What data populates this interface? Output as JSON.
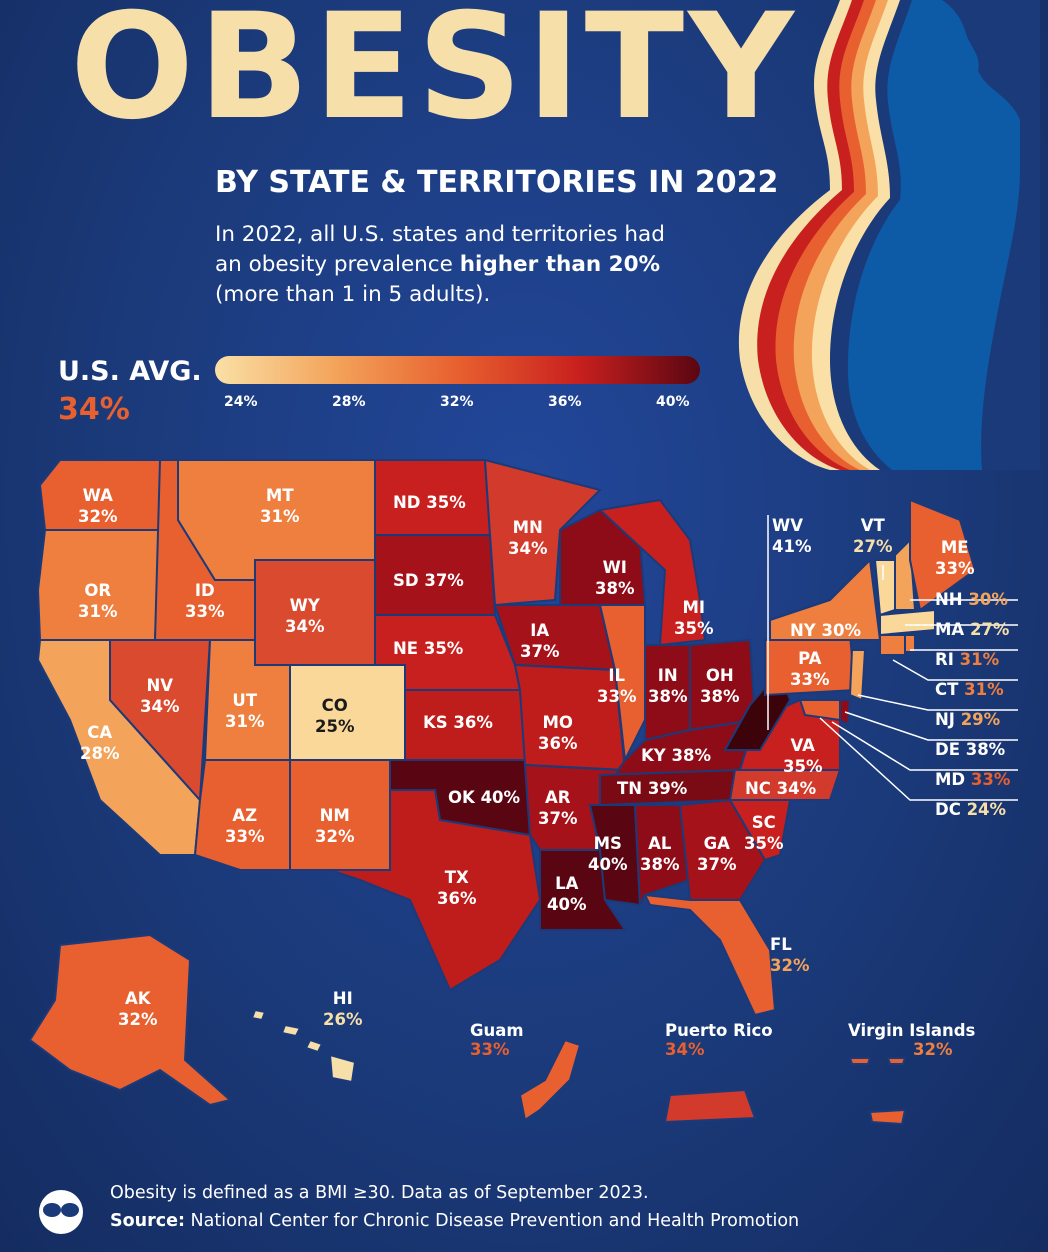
{
  "header": {
    "title": "OBESITY",
    "subtitle": "BY STATE & TERRITORIES IN 2022",
    "description_part1": "In 2022, all U.S. states and territories had an obesity prevalence ",
    "description_bold": "higher than 20%",
    "description_part2": " (more than 1 in 5 adults)."
  },
  "us_average": {
    "label": "U.S. AVG.",
    "value": "34%"
  },
  "legend": {
    "ticks": [
      "24%",
      "28%",
      "32%",
      "36%",
      "40%"
    ],
    "colors": [
      "#fae0a6",
      "#f3a35a",
      "#e8602f",
      "#c8201e",
      "#5a0612"
    ]
  },
  "states": {
    "WA": {
      "abbr": "WA",
      "value": "32%"
    },
    "OR": {
      "abbr": "OR",
      "value": "31%"
    },
    "CA": {
      "abbr": "CA",
      "value": "28%"
    },
    "ID": {
      "abbr": "ID",
      "value": "33%"
    },
    "NV": {
      "abbr": "NV",
      "value": "34%"
    },
    "MT": {
      "abbr": "MT",
      "value": "31%"
    },
    "WY": {
      "abbr": "WY",
      "value": "34%"
    },
    "UT": {
      "abbr": "UT",
      "value": "31%"
    },
    "CO": {
      "abbr": "CO",
      "value": "25%"
    },
    "AZ": {
      "abbr": "AZ",
      "value": "33%"
    },
    "NM": {
      "abbr": "NM",
      "value": "32%"
    },
    "ND": {
      "abbr": "ND",
      "value": "35%"
    },
    "SD": {
      "abbr": "SD",
      "value": "37%"
    },
    "NE": {
      "abbr": "NE",
      "value": "35%"
    },
    "KS": {
      "abbr": "KS",
      "value": "36%"
    },
    "OK": {
      "abbr": "OK",
      "value": "40%"
    },
    "TX": {
      "abbr": "TX",
      "value": "36%"
    },
    "MN": {
      "abbr": "MN",
      "value": "34%"
    },
    "IA": {
      "abbr": "IA",
      "value": "37%"
    },
    "MO": {
      "abbr": "MO",
      "value": "36%"
    },
    "AR": {
      "abbr": "AR",
      "value": "37%"
    },
    "LA": {
      "abbr": "LA",
      "value": "40%"
    },
    "WI": {
      "abbr": "WI",
      "value": "38%"
    },
    "IL": {
      "abbr": "IL",
      "value": "33%"
    },
    "MS": {
      "abbr": "MS",
      "value": "40%"
    },
    "MI": {
      "abbr": "MI",
      "value": "35%"
    },
    "IN": {
      "abbr": "IN",
      "value": "38%"
    },
    "KY": {
      "abbr": "KY",
      "value": "38%"
    },
    "TN": {
      "abbr": "TN",
      "value": "39%"
    },
    "AL": {
      "abbr": "AL",
      "value": "38%"
    },
    "OH": {
      "abbr": "OH",
      "value": "38%"
    },
    "GA": {
      "abbr": "GA",
      "value": "37%"
    },
    "FL": {
      "abbr": "FL",
      "value": "32%"
    },
    "SC": {
      "abbr": "SC",
      "value": "35%"
    },
    "NC": {
      "abbr": "NC",
      "value": "34%"
    },
    "VA": {
      "abbr": "VA",
      "value": "35%"
    },
    "WV": {
      "abbr": "WV",
      "value": "41%"
    },
    "PA": {
      "abbr": "PA",
      "value": "33%"
    },
    "NY": {
      "abbr": "NY",
      "value": "30%"
    },
    "VT": {
      "abbr": "VT",
      "value": "27%"
    },
    "ME": {
      "abbr": "ME",
      "value": "33%"
    },
    "NH": {
      "abbr": "NH",
      "value": "30%"
    },
    "MA": {
      "abbr": "MA",
      "value": "27%"
    },
    "RI": {
      "abbr": "RI",
      "value": "31%"
    },
    "CT": {
      "abbr": "CT",
      "value": "31%"
    },
    "NJ": {
      "abbr": "NJ",
      "value": "29%"
    },
    "DE": {
      "abbr": "DE",
      "value": "38%"
    },
    "MD": {
      "abbr": "MD",
      "value": "33%"
    },
    "DC": {
      "abbr": "DC",
      "value": "24%"
    },
    "AK": {
      "abbr": "AK",
      "value": "32%"
    },
    "HI": {
      "abbr": "HI",
      "value": "26%"
    }
  },
  "territories": {
    "guam": {
      "name": "Guam",
      "value": "33%"
    },
    "puerto_rico": {
      "name": "Puerto Rico",
      "value": "34%"
    },
    "virgin_islands": {
      "name": "Virgin Islands",
      "value": "32%"
    }
  },
  "footer": {
    "note": "Obesity is defined as a BMI ≥30. Data as of September 2023.",
    "source_label": "Source:",
    "source_text": " National Center for Chronic Disease Prevention and Health Promotion"
  }
}
